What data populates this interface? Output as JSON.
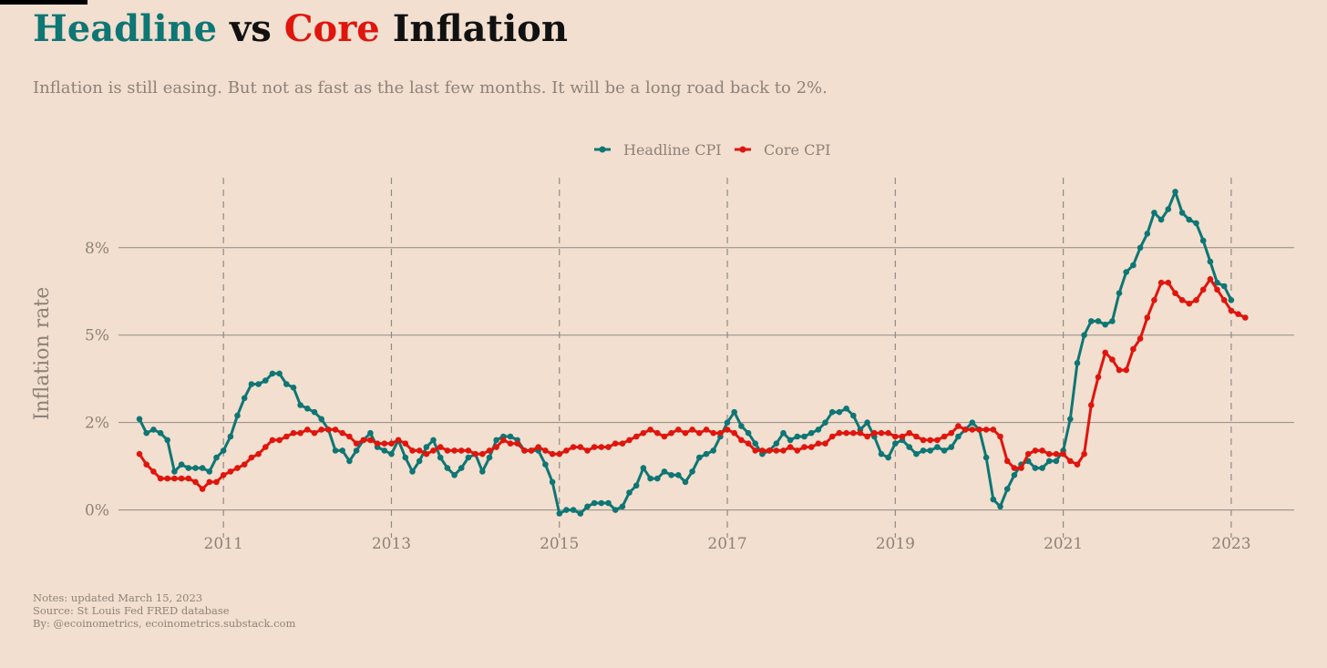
{
  "header": {
    "title_part1": "Headline",
    "title_part2": "vs",
    "title_part3": "Core",
    "title_part4": "Inflation",
    "subtitle": "Inflation is still easing. But not as fast as the last few months. It will be a long road back to 2%."
  },
  "notes": {
    "line1": "Notes: updated March 15, 2023",
    "line2": "Source: St Louis Fed FRED database",
    "line3": "By: @ecoinometrics, ecoinometrics.substack.com"
  },
  "colors": {
    "headline": "#0e7674",
    "core": "#e0150d",
    "background": "#f2dfcf",
    "grid": "#8f8a86",
    "text_muted": "#8c8279"
  },
  "chart_data": {
    "type": "line",
    "title": "Headline vs Core Inflation",
    "ylabel": "Inflation rate",
    "xlabel": "",
    "x_start": "2010-01",
    "x_frequency": "monthly",
    "xlim": [
      2009.75,
      2023.75
    ],
    "ylim": [
      -0.4,
      9.5
    ],
    "yticks": [
      0,
      2.5,
      5,
      7.5
    ],
    "ytick_labels": [
      "0%",
      "2%",
      "5%",
      "8%"
    ],
    "xticks": [
      2011,
      2013,
      2015,
      2017,
      2019,
      2021,
      2023
    ],
    "xtick_labels": [
      "2011",
      "2013",
      "2015",
      "2017",
      "2019",
      "2021",
      "2023"
    ],
    "grid": "horizontal solid, vertical dashed at year ticks",
    "legend_position": "top-center",
    "series": [
      {
        "name": "Headline CPI",
        "color": "#0e7674",
        "values": [
          2.6,
          2.2,
          2.3,
          2.2,
          2.0,
          1.1,
          1.3,
          1.2,
          1.2,
          1.2,
          1.1,
          1.5,
          1.7,
          2.1,
          2.7,
          3.2,
          3.6,
          3.6,
          3.7,
          3.9,
          3.9,
          3.6,
          3.5,
          3.0,
          2.9,
          2.8,
          2.6,
          2.3,
          1.7,
          1.7,
          1.4,
          1.7,
          2.0,
          2.2,
          1.8,
          1.7,
          1.6,
          2.0,
          1.5,
          1.1,
          1.4,
          1.8,
          2.0,
          1.5,
          1.2,
          1.0,
          1.2,
          1.5,
          1.6,
          1.1,
          1.5,
          2.0,
          2.1,
          2.1,
          2.0,
          1.7,
          1.7,
          1.7,
          1.3,
          0.8,
          -0.1,
          0.0,
          0.0,
          -0.1,
          0.1,
          0.2,
          0.2,
          0.2,
          0.0,
          0.1,
          0.5,
          0.7,
          1.2,
          0.9,
          0.9,
          1.1,
          1.0,
          1.0,
          0.8,
          1.1,
          1.5,
          1.6,
          1.7,
          2.1,
          2.5,
          2.8,
          2.4,
          2.2,
          1.9,
          1.6,
          1.7,
          1.9,
          2.2,
          2.0,
          2.1,
          2.1,
          2.2,
          2.3,
          2.5,
          2.8,
          2.8,
          2.9,
          2.7,
          2.3,
          2.5,
          2.1,
          1.6,
          1.5,
          1.9,
          2.0,
          1.8,
          1.6,
          1.7,
          1.7,
          1.8,
          1.7,
          1.8,
          2.1,
          2.3,
          2.5,
          2.3,
          1.5,
          0.3,
          0.1,
          0.6,
          1.0,
          1.3,
          1.4,
          1.2,
          1.2,
          1.4,
          1.4,
          1.7,
          2.6,
          4.2,
          5.0,
          5.4,
          5.4,
          5.3,
          5.4,
          6.2,
          6.8,
          7.0,
          7.5,
          7.9,
          8.5,
          8.3,
          8.6,
          9.1,
          8.5,
          8.3,
          8.2,
          7.7,
          7.1,
          6.5,
          6.4,
          6.0
        ]
      },
      {
        "name": "Core CPI",
        "color": "#e0150d",
        "values": [
          1.6,
          1.3,
          1.1,
          0.9,
          0.9,
          0.9,
          0.9,
          0.9,
          0.8,
          0.6,
          0.8,
          0.8,
          1.0,
          1.1,
          1.2,
          1.3,
          1.5,
          1.6,
          1.8,
          2.0,
          2.0,
          2.1,
          2.2,
          2.2,
          2.3,
          2.2,
          2.3,
          2.3,
          2.3,
          2.2,
          2.1,
          1.9,
          2.0,
          2.0,
          1.9,
          1.9,
          1.9,
          2.0,
          1.9,
          1.7,
          1.7,
          1.6,
          1.7,
          1.8,
          1.7,
          1.7,
          1.7,
          1.7,
          1.6,
          1.6,
          1.7,
          1.8,
          2.0,
          1.9,
          1.9,
          1.7,
          1.7,
          1.8,
          1.7,
          1.6,
          1.6,
          1.7,
          1.8,
          1.8,
          1.7,
          1.8,
          1.8,
          1.8,
          1.9,
          1.9,
          2.0,
          2.1,
          2.2,
          2.3,
          2.2,
          2.1,
          2.2,
          2.3,
          2.2,
          2.3,
          2.2,
          2.3,
          2.2,
          2.2,
          2.3,
          2.2,
          2.0,
          1.9,
          1.7,
          1.7,
          1.7,
          1.7,
          1.7,
          1.8,
          1.7,
          1.8,
          1.8,
          1.9,
          1.9,
          2.1,
          2.2,
          2.2,
          2.2,
          2.2,
          2.1,
          2.2,
          2.2,
          2.2,
          2.1,
          2.1,
          2.2,
          2.1,
          2.0,
          2.0,
          2.0,
          2.1,
          2.2,
          2.4,
          2.3,
          2.3,
          2.3,
          2.3,
          2.3,
          2.1,
          1.4,
          1.2,
          1.2,
          1.6,
          1.7,
          1.7,
          1.6,
          1.6,
          1.6,
          1.4,
          1.3,
          1.6,
          3.0,
          3.8,
          4.5,
          4.3,
          4.0,
          4.0,
          4.6,
          4.9,
          5.5,
          6.0,
          6.5,
          6.5,
          6.2,
          6.0,
          5.9,
          6.0,
          6.3,
          6.6,
          6.3,
          6.0,
          5.7,
          5.6,
          5.5
        ]
      }
    ]
  }
}
